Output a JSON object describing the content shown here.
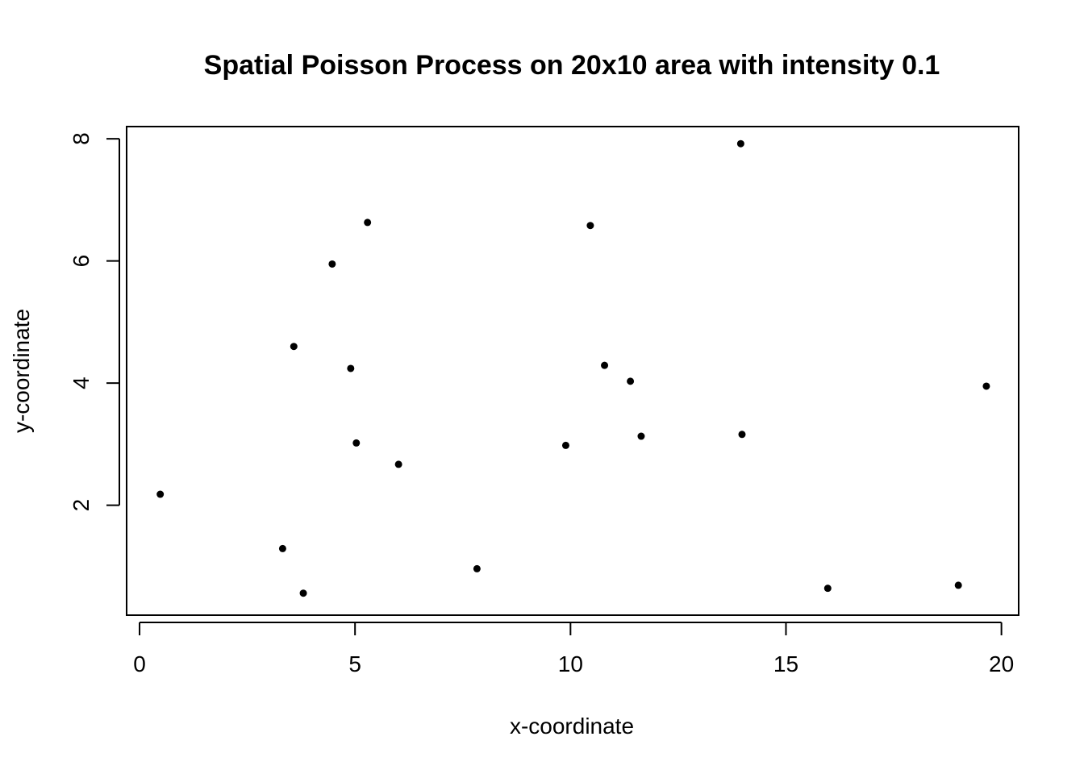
{
  "chart_data": {
    "type": "scatter",
    "title": "Spatial Poisson Process on 20x10 area with intensity 0.1",
    "xlabel": "x-coordinate",
    "ylabel": "y-coordinate",
    "xlim": [
      -0.3,
      20.4
    ],
    "ylim": [
      0.2,
      8.2
    ],
    "xticks": [
      0,
      5,
      10,
      15,
      20
    ],
    "xtick_labels": [
      "0",
      "5",
      "10",
      "15",
      "20"
    ],
    "yticks": [
      2,
      4,
      6,
      8
    ],
    "ytick_labels": [
      "2",
      "4",
      "6",
      "8"
    ],
    "grid": false,
    "legend": "none",
    "point_color": "#000000",
    "points": [
      {
        "x": 0.48,
        "y": 2.18
      },
      {
        "x": 3.32,
        "y": 1.29
      },
      {
        "x": 3.8,
        "y": 0.56
      },
      {
        "x": 3.58,
        "y": 4.6
      },
      {
        "x": 4.47,
        "y": 5.95
      },
      {
        "x": 4.9,
        "y": 4.24
      },
      {
        "x": 5.03,
        "y": 3.02
      },
      {
        "x": 5.29,
        "y": 6.63
      },
      {
        "x": 6.01,
        "y": 2.67
      },
      {
        "x": 7.83,
        "y": 0.96
      },
      {
        "x": 9.89,
        "y": 2.98
      },
      {
        "x": 10.46,
        "y": 6.58
      },
      {
        "x": 10.79,
        "y": 4.29
      },
      {
        "x": 11.39,
        "y": 4.03
      },
      {
        "x": 11.64,
        "y": 3.13
      },
      {
        "x": 13.95,
        "y": 7.92
      },
      {
        "x": 13.98,
        "y": 3.16
      },
      {
        "x": 15.97,
        "y": 0.64
      },
      {
        "x": 19.0,
        "y": 0.69
      },
      {
        "x": 19.65,
        "y": 3.95
      }
    ]
  }
}
